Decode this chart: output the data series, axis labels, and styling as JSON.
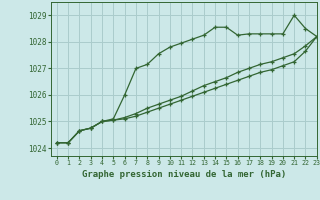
{
  "title": "Graphe pression niveau de la mer (hPa)",
  "background_color": "#cce8e8",
  "grid_color": "#aacccc",
  "line_color": "#336633",
  "xlim": [
    -0.5,
    23
  ],
  "ylim": [
    1023.7,
    1029.5
  ],
  "yticks": [
    1024,
    1025,
    1026,
    1027,
    1028,
    1029
  ],
  "xticks": [
    0,
    1,
    2,
    3,
    4,
    5,
    6,
    7,
    8,
    9,
    10,
    11,
    12,
    13,
    14,
    15,
    16,
    17,
    18,
    19,
    20,
    21,
    22,
    23
  ],
  "series1": [
    1024.2,
    1024.2,
    1024.65,
    1024.75,
    1025.0,
    1025.1,
    1026.0,
    1027.0,
    1027.15,
    1027.55,
    1027.8,
    1027.95,
    1028.1,
    1028.25,
    1028.55,
    1028.55,
    1028.25,
    1028.3,
    1028.3,
    1028.3,
    1028.3,
    1029.0,
    1028.5,
    1028.2
  ],
  "series2": [
    1024.2,
    1024.2,
    1024.65,
    1024.75,
    1025.0,
    1025.05,
    1025.1,
    1025.2,
    1025.35,
    1025.5,
    1025.65,
    1025.8,
    1025.95,
    1026.1,
    1026.25,
    1026.4,
    1026.55,
    1026.7,
    1026.85,
    1026.95,
    1027.1,
    1027.25,
    1027.65,
    1028.2
  ],
  "series3": [
    1024.2,
    1024.2,
    1024.65,
    1024.75,
    1025.0,
    1025.05,
    1025.15,
    1025.3,
    1025.5,
    1025.65,
    1025.8,
    1025.95,
    1026.15,
    1026.35,
    1026.5,
    1026.65,
    1026.85,
    1027.0,
    1027.15,
    1027.25,
    1027.4,
    1027.55,
    1027.85,
    1028.2
  ]
}
